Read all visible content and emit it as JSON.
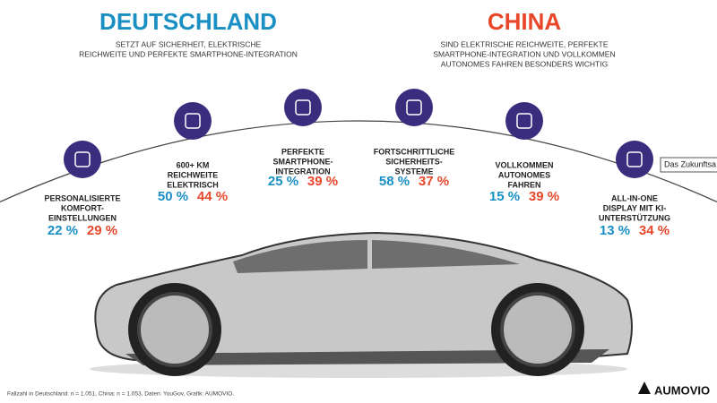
{
  "header": {
    "left": {
      "title": "DEUTSCHLAND",
      "subtitle": [
        "SETZT AUF SICHERHEIT, ELEKTRISCHE",
        "REICHWEITE UND PERFEKTE SMARTPHONE-INTEGRATION"
      ]
    },
    "right": {
      "title": "CHINA",
      "subtitle": [
        "SIND ELEKTRISCHE REICHWEITE, PERFEKTE",
        "SMARTPHONE-INTEGRATION UND VOLLKOMMEN",
        "AUTONOMES FAHREN BESONDERS WICHTIG"
      ]
    }
  },
  "features": [
    {
      "label": [
        "PERSONALISIERTE",
        "KOMFORT-",
        "EINSTELLUNGEN"
      ],
      "germany": "22 %",
      "china": "29 %"
    },
    {
      "label": [
        "600+ KM",
        "REICHWEITE",
        "ELEKTRISCH"
      ],
      "germany": "50 %",
      "china": "44 %"
    },
    {
      "label": [
        "PERFEKTE",
        "SMARTPHONE-",
        "INTEGRATION"
      ],
      "germany": "25 %",
      "china": "39 %"
    },
    {
      "label": [
        "FORTSCHRITTLICHE",
        "SICHERHEITS-",
        "SYSTEME"
      ],
      "germany": "58 %",
      "china": "37 %"
    },
    {
      "label": [
        "VOLLKOMMEN",
        "AUTONOMES",
        "FAHREN"
      ],
      "germany": "15 %",
      "china": "39 %"
    },
    {
      "label": [
        "ALL-IN-ONE",
        "DISPLAY MIT KI-",
        "UNTERSTÜTZUNG"
      ],
      "germany": "13 %",
      "china": "34 %"
    }
  ],
  "tooltip": "Das Zukunftsa",
  "footer": {
    "note": "Fallzahl in Deutschland: n = 1.051, China: n = 1.053, Daten: YouGov, Grafik: AUMOVIO.",
    "logo": "AUMOVIO"
  }
}
